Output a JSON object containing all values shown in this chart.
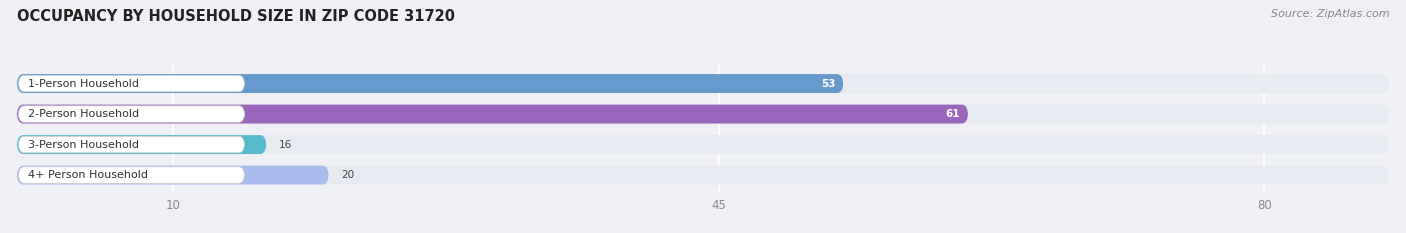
{
  "title": "OCCUPANCY BY HOUSEHOLD SIZE IN ZIP CODE 31720",
  "source": "Source: ZipAtlas.com",
  "categories": [
    "1-Person Household",
    "2-Person Household",
    "3-Person Household",
    "4+ Person Household"
  ],
  "values": [
    53,
    61,
    16,
    20
  ],
  "bar_colors": [
    "#6699cc",
    "#9966bb",
    "#55bbcc",
    "#aabbee"
  ],
  "bar_label_colors": [
    "white",
    "white",
    "black",
    "black"
  ],
  "xlim": [
    0,
    88
  ],
  "xticks": [
    10,
    45,
    80
  ],
  "background_color": "#eef0f5",
  "bar_bg_color": "#e0e3ec",
  "row_bg_color": "#e8eaf2",
  "title_fontsize": 10.5,
  "source_fontsize": 8,
  "label_fontsize": 8,
  "value_fontsize": 7.5,
  "tick_fontsize": 8.5,
  "bar_height": 0.62,
  "figure_width": 14.06,
  "figure_height": 2.33
}
